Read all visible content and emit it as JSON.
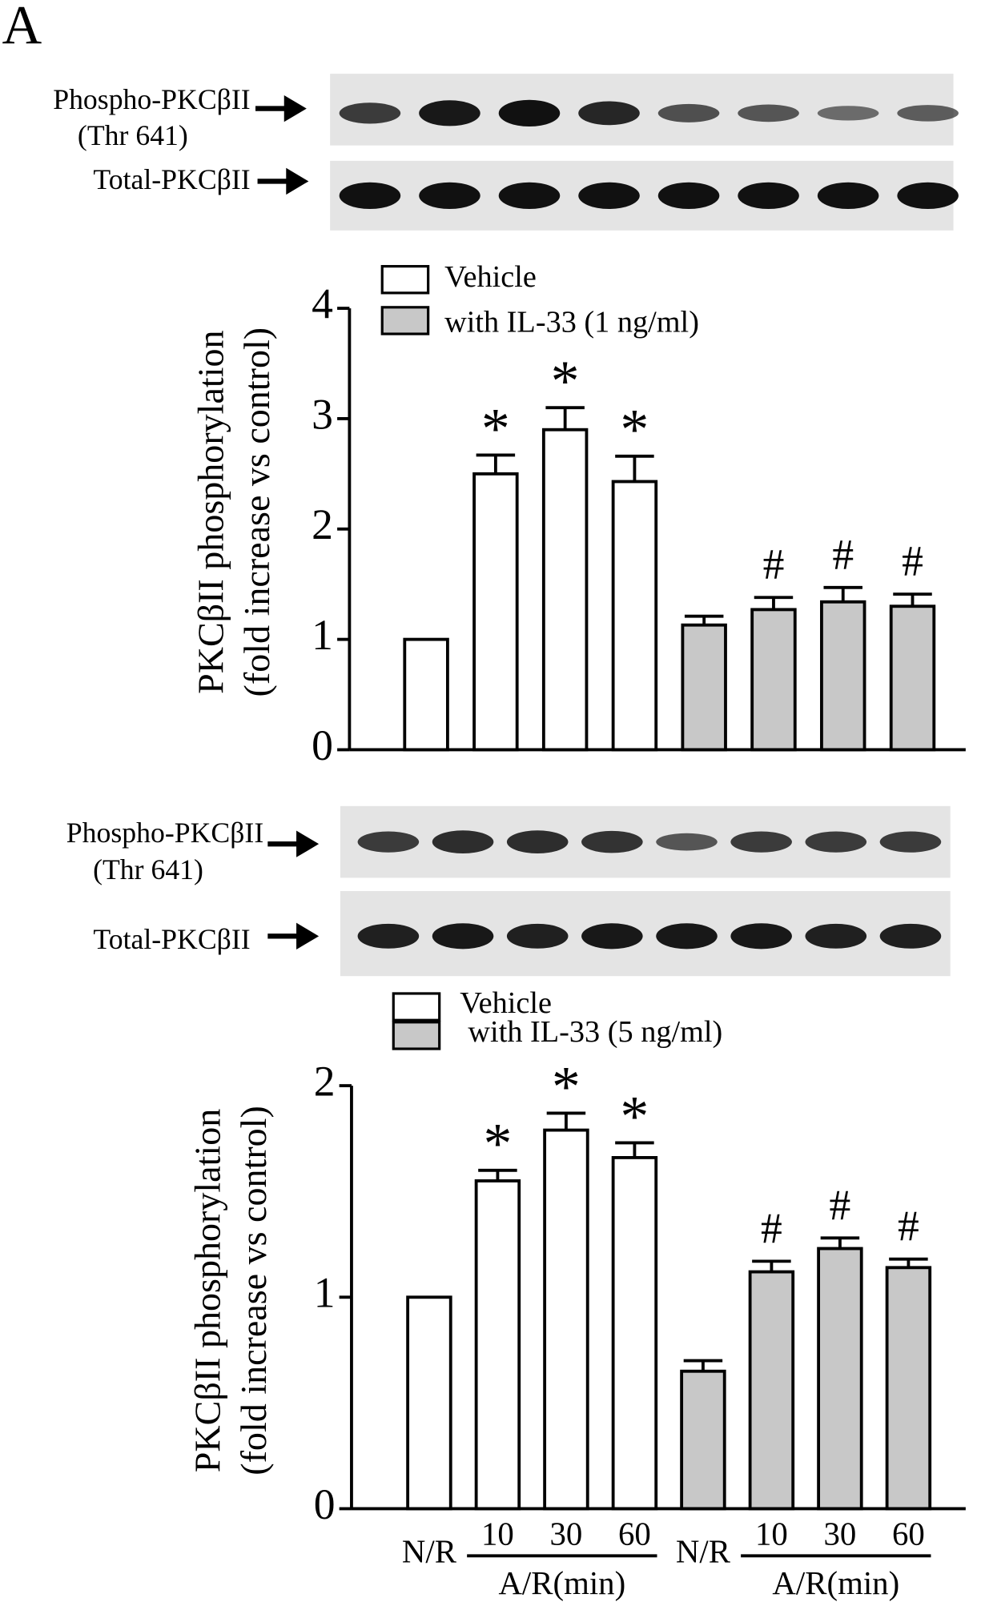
{
  "panel_label": "A",
  "blots": [
    {
      "labels": [
        "Phospho-PKCβII",
        "(Thr 641)",
        "Total-PKCβII"
      ]
    },
    {
      "labels": [
        "Phospho-PKCβII",
        "(Thr 641)",
        "Total-PKCβII"
      ]
    }
  ],
  "chart_data": [
    {
      "type": "bar",
      "categories": [
        null,
        null,
        null,
        null,
        null,
        null,
        null,
        null
      ],
      "series": [
        {
          "name": "Vehicle",
          "color": "#ffffff",
          "values": [
            1,
            2.5,
            2.9,
            2.43,
            null,
            null,
            null,
            null
          ],
          "errors": [
            null,
            0.17,
            0.2,
            0.23,
            null,
            null,
            null,
            null
          ]
        },
        {
          "name": "with IL-33 (1 ng/ml)",
          "color": "#c8c8c8",
          "values": [
            null,
            null,
            null,
            null,
            1.13,
            1.27,
            1.34,
            1.3
          ],
          "errors": [
            null,
            null,
            null,
            null,
            0.08,
            0.11,
            0.13,
            0.11
          ]
        }
      ],
      "annotations": [
        null,
        "*",
        "*",
        "*",
        null,
        "#",
        "#",
        "#"
      ],
      "y_label": [
        "PKCβII phosphorylation",
        "(fold increase vs control)"
      ],
      "ylim": [
        0,
        4
      ],
      "yticks": [
        0,
        1,
        2,
        3,
        4
      ]
    },
    {
      "type": "bar",
      "categories": [
        "N/R",
        "10",
        "30",
        "60",
        "N/R",
        "10",
        "30",
        "60"
      ],
      "group_labels": [
        "A/R(min)",
        "A/R(min)"
      ],
      "series": [
        {
          "name": "Vehicle",
          "color": "#ffffff",
          "values": [
            1,
            1.55,
            1.79,
            1.66,
            null,
            null,
            null,
            null
          ],
          "errors": [
            null,
            0.05,
            0.08,
            0.07,
            null,
            null,
            null,
            null
          ]
        },
        {
          "name": "with IL-33 (5 ng/ml)",
          "color": "#c8c8c8",
          "values": [
            null,
            null,
            null,
            null,
            0.65,
            1.12,
            1.23,
            1.14
          ],
          "errors": [
            null,
            null,
            null,
            null,
            0.05,
            0.05,
            0.05,
            0.04
          ]
        }
      ],
      "annotations": [
        null,
        "*",
        "*",
        "*",
        null,
        "#",
        "#",
        "#"
      ],
      "y_label": [
        "PKCβII phosphorylation",
        "(fold increase vs control)"
      ],
      "ylim": [
        0,
        2
      ],
      "yticks": [
        0,
        1,
        2
      ]
    }
  ]
}
